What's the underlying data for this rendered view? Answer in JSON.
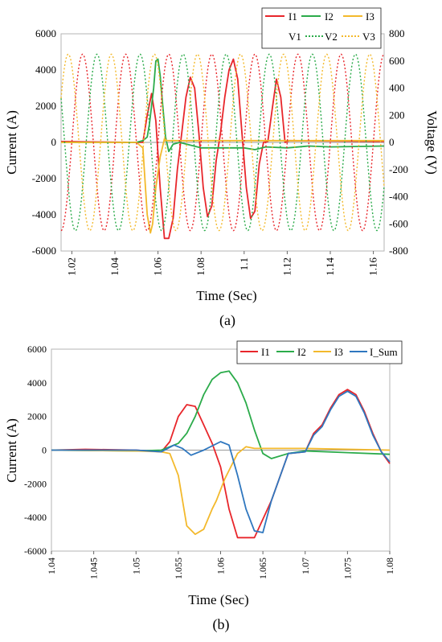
{
  "captions": {
    "a": "(a)",
    "b": "(b)"
  },
  "colors": {
    "I1": "#e8262b",
    "I2": "#2bab4a",
    "I3": "#f3b92c",
    "I_Sum": "#2f77bf",
    "V1": "#e8262b",
    "V2": "#2bab4a",
    "V3": "#f3b92c"
  },
  "chart_data": [
    {
      "id": "a",
      "type": "line",
      "xlabel": "Time (Sec)",
      "ylabel": "Current (A)",
      "y2label": "Voltage (V)",
      "xlim": [
        1.015,
        1.165
      ],
      "ylim": [
        -6000,
        6000
      ],
      "y2lim": [
        -800,
        800
      ],
      "x_ticks": [
        "1.02",
        "1.04",
        "1.06",
        "1.08",
        "1.1",
        "1.12",
        "1.14",
        "1.16"
      ],
      "y_ticks": [
        "-6000",
        "-4000",
        "-2000",
        "0",
        "2000",
        "4000",
        "6000"
      ],
      "y2_ticks": [
        "-800",
        "-600",
        "-400",
        "-200",
        "0",
        "200",
        "400",
        "600",
        "800"
      ],
      "legend_position": "top-right",
      "series": [
        {
          "name": "I1",
          "axis": "left",
          "style": "solid",
          "x": [
            1.015,
            1.05,
            1.053,
            1.055,
            1.057,
            1.059,
            1.061,
            1.063,
            1.065,
            1.067,
            1.069,
            1.071,
            1.073,
            1.075,
            1.077,
            1.079,
            1.081,
            1.083,
            1.085,
            1.087,
            1.089,
            1.091,
            1.093,
            1.095,
            1.097,
            1.099,
            1.101,
            1.103,
            1.105,
            1.107,
            1.109,
            1.111,
            1.113,
            1.115,
            1.117,
            1.119,
            1.121,
            1.165
          ],
          "y": [
            50,
            0,
            0,
            1500,
            2700,
            1200,
            -2500,
            -5300,
            -5300,
            -4200,
            -1500,
            500,
            2500,
            3600,
            3000,
            500,
            -2500,
            -4100,
            -3500,
            -1000,
            500,
            2500,
            4000,
            4600,
            3500,
            500,
            -2500,
            -4200,
            -3800,
            -1200,
            0,
            50,
            1800,
            3500,
            2500,
            0,
            100,
            50
          ]
        },
        {
          "name": "I2",
          "axis": "left",
          "style": "solid",
          "x": [
            1.015,
            1.05,
            1.053,
            1.055,
            1.056,
            1.058,
            1.059,
            1.06,
            1.061,
            1.062,
            1.0635,
            1.065,
            1.067,
            1.07,
            1.08,
            1.09,
            1.1,
            1.105,
            1.11,
            1.12,
            1.13,
            1.14,
            1.165
          ],
          "y": [
            0,
            0,
            100,
            300,
            1000,
            3000,
            4500,
            4600,
            3700,
            2300,
            300,
            -500,
            -100,
            0,
            -300,
            -300,
            -300,
            -400,
            -250,
            -300,
            -200,
            -250,
            -200
          ]
        },
        {
          "name": "I3",
          "axis": "left",
          "style": "solid",
          "x": [
            1.015,
            1.05,
            1.053,
            1.055,
            1.0565,
            1.0575,
            1.059,
            1.061,
            1.062,
            1.063,
            1.064,
            1.066,
            1.07,
            1.165
          ],
          "y": [
            0,
            0,
            -300,
            -4000,
            -5000,
            -4500,
            -2500,
            -800,
            -300,
            200,
            100,
            100,
            100,
            100
          ]
        },
        {
          "name": "V1",
          "axis": "right",
          "style": "dotted",
          "amp": 650,
          "freq": 50,
          "phase": 0.0
        },
        {
          "name": "V2",
          "axis": "right",
          "style": "dotted",
          "amp": 650,
          "freq": 50,
          "phase": -2.0944
        },
        {
          "name": "V3",
          "axis": "right",
          "style": "dotted",
          "amp": 650,
          "freq": 50,
          "phase": 2.0944
        }
      ]
    },
    {
      "id": "b",
      "type": "line",
      "xlabel": "Time (Sec)",
      "ylabel": "Current (A)",
      "xlim": [
        1.04,
        1.08
      ],
      "ylim": [
        -6000,
        6000
      ],
      "x_ticks": [
        "1.04",
        "1.045",
        "1.05",
        "1.055",
        "1.06",
        "1.065",
        "1.07",
        "1.075",
        "1.08"
      ],
      "y_ticks": [
        "-6000",
        "-4000",
        "-2000",
        "0",
        "2000",
        "4000",
        "6000"
      ],
      "legend_position": "top-right",
      "series": [
        {
          "name": "I1",
          "x": [
            1.04,
            1.044,
            1.05,
            1.053,
            1.054,
            1.055,
            1.056,
            1.057,
            1.058,
            1.059,
            1.06,
            1.061,
            1.062,
            1.063,
            1.064,
            1.066,
            1.068,
            1.07,
            1.071,
            1.072,
            1.073,
            1.074,
            1.075,
            1.076,
            1.077,
            1.078,
            1.079,
            1.08
          ],
          "y": [
            0,
            50,
            0,
            -100,
            500,
            2000,
            2700,
            2600,
            1500,
            400,
            -1000,
            -3500,
            -5200,
            -5200,
            -5200,
            -3000,
            -200,
            -100,
            1000,
            1500,
            2500,
            3300,
            3600,
            3300,
            2300,
            1000,
            -100,
            -800
          ]
        },
        {
          "name": "I2",
          "x": [
            1.04,
            1.05,
            1.053,
            1.054,
            1.055,
            1.056,
            1.057,
            1.058,
            1.059,
            1.06,
            1.061,
            1.062,
            1.063,
            1.064,
            1.065,
            1.066,
            1.068,
            1.07,
            1.075,
            1.08
          ],
          "y": [
            0,
            -50,
            0,
            200,
            400,
            1000,
            2000,
            3300,
            4200,
            4600,
            4700,
            4000,
            2800,
            1200,
            -200,
            -500,
            -200,
            -50,
            -150,
            -250
          ]
        },
        {
          "name": "I3",
          "x": [
            1.04,
            1.05,
            1.053,
            1.054,
            1.055,
            1.056,
            1.057,
            1.058,
            1.059,
            1.0595,
            1.0605,
            1.0615,
            1.062,
            1.063,
            1.064,
            1.066,
            1.07,
            1.08
          ],
          "y": [
            0,
            -50,
            -100,
            -200,
            -1500,
            -4500,
            -5000,
            -4700,
            -3500,
            -3000,
            -1700,
            -700,
            -200,
            200,
            100,
            100,
            100,
            0
          ]
        },
        {
          "name": "I_Sum",
          "x": [
            1.04,
            1.05,
            1.053,
            1.0545,
            1.0555,
            1.0565,
            1.058,
            1.06,
            1.061,
            1.062,
            1.063,
            1.064,
            1.065,
            1.066,
            1.068,
            1.07,
            1.071,
            1.072,
            1.073,
            1.074,
            1.075,
            1.076,
            1.077,
            1.078,
            1.079,
            1.08
          ],
          "y": [
            0,
            0,
            -100,
            300,
            100,
            -300,
            0,
            500,
            300,
            -1500,
            -3500,
            -4800,
            -4900,
            -3000,
            -200,
            -100,
            900,
            1400,
            2400,
            3200,
            3500,
            3200,
            2200,
            900,
            -100,
            -700
          ]
        }
      ]
    }
  ]
}
